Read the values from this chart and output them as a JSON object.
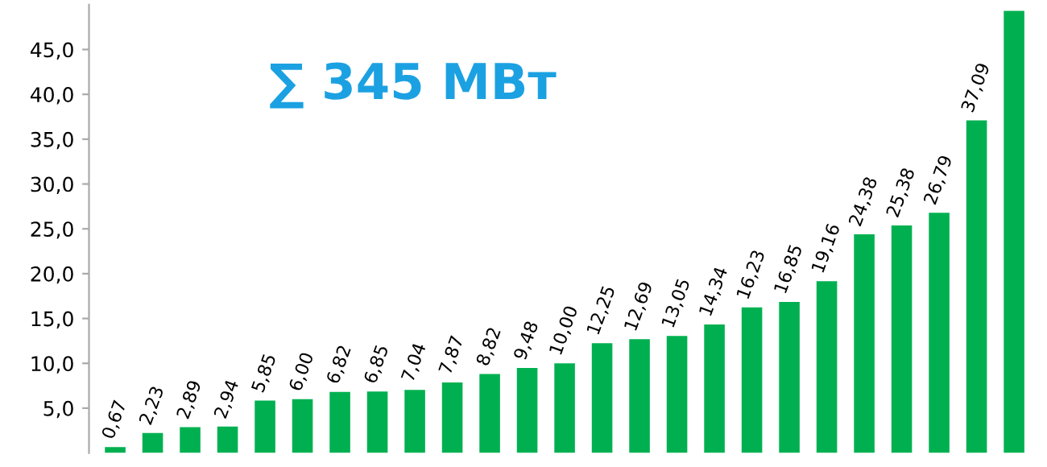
{
  "chart_data": {
    "type": "bar",
    "annotations": [
      "∑ 345 МВт"
    ],
    "categories": [
      null,
      null,
      null,
      null,
      null,
      null,
      null,
      null,
      null,
      null,
      null,
      null,
      null,
      null,
      null,
      null,
      null,
      null,
      null,
      null,
      null,
      null,
      null,
      null,
      null
    ],
    "values": [
      0.67,
      2.23,
      2.89,
      2.94,
      5.85,
      6.0,
      6.82,
      6.85,
      7.04,
      7.87,
      8.82,
      9.48,
      10.0,
      12.25,
      12.69,
      13.05,
      14.34,
      16.23,
      16.85,
      19.16,
      24.38,
      25.38,
      26.79,
      37.09,
      49.3
    ],
    "value_labels": [
      "0,67",
      "2,23",
      "2,89",
      "2,94",
      "5,85",
      "6,00",
      "6,82",
      "6,85",
      "7,04",
      "7,87",
      "8,82",
      "9,48",
      "10,00",
      "12,25",
      "12,69",
      "13,05",
      "14,34",
      "16,23",
      "16,85",
      "19,16",
      "24,38",
      "25,38",
      "26,79",
      "37,09",
      null
    ],
    "color": "#00b050",
    "ylim": [
      0,
      50
    ],
    "yticks": [
      {
        "value": 5,
        "label": "5,0"
      },
      {
        "value": 10,
        "label": "10,0"
      },
      {
        "value": 15,
        "label": "15,0"
      },
      {
        "value": 20,
        "label": "20,0"
      },
      {
        "value": 25,
        "label": "25,0"
      },
      {
        "value": 30,
        "label": "30,0"
      },
      {
        "value": 35,
        "label": "35,0"
      },
      {
        "value": 40,
        "label": "40,0"
      },
      {
        "value": 45,
        "label": "45,0"
      }
    ],
    "grid": false
  }
}
